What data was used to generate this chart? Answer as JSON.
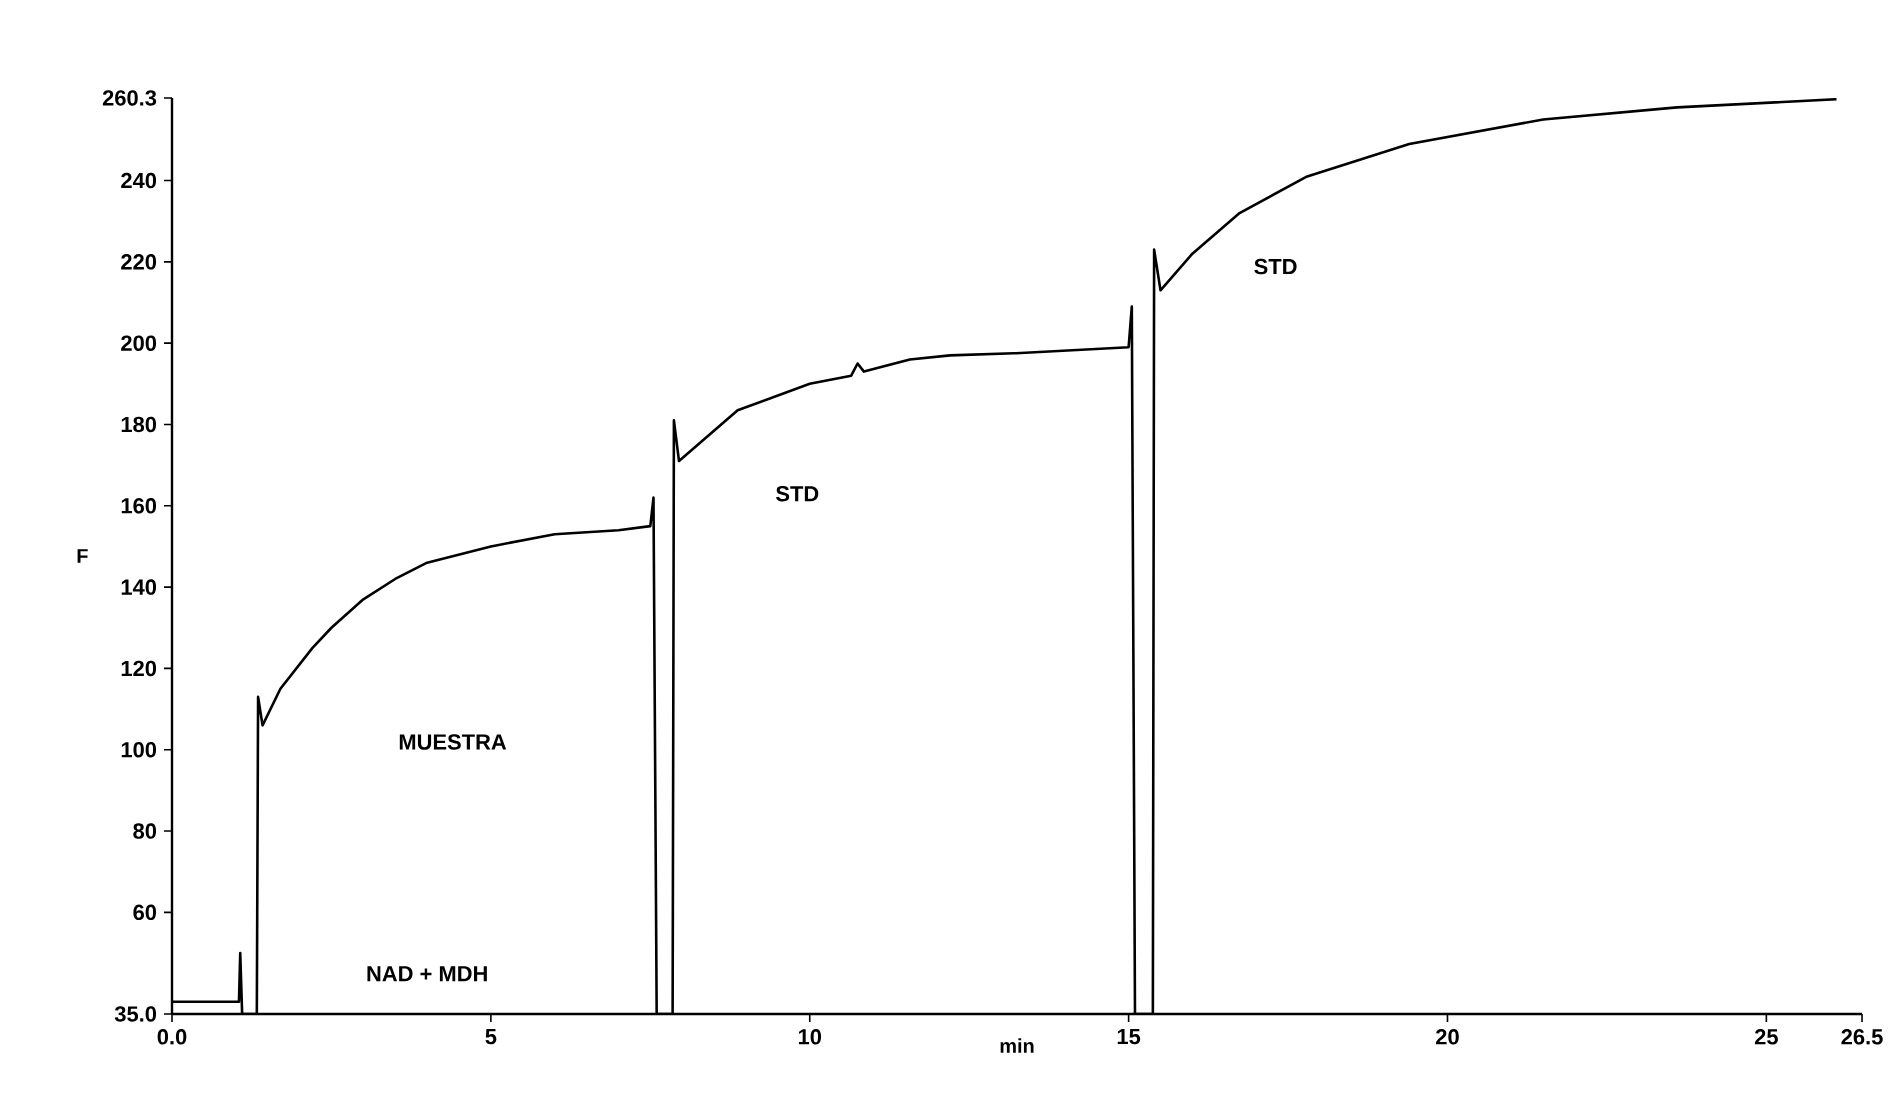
{
  "chart_data": {
    "type": "line",
    "xlabel": "min",
    "ylabel": "F",
    "x": [
      0,
      1.05,
      1.07,
      1.1,
      1.33,
      1.35,
      1.42,
      1.7,
      2.2,
      2.5,
      3.0,
      3.5,
      4.0,
      5.0,
      6.0,
      7.0,
      7.5,
      7.55,
      7.6,
      7.85,
      7.87,
      7.95,
      8.87,
      10.0,
      10.65,
      10.75,
      10.85,
      11.57,
      12.2,
      13.2,
      15.0,
      15.05,
      15.1,
      15.38,
      15.4,
      15.5,
      16.0,
      16.74,
      17.8,
      19.4,
      21.5,
      23.6,
      26.1
    ],
    "series": [
      {
        "color": "#000000",
        "values": [
          38,
          38,
          50,
          35,
          35,
          113,
          106,
          115,
          125,
          130,
          137,
          142,
          146,
          150,
          153,
          154,
          155,
          162,
          35,
          35,
          181,
          171,
          183.5,
          190,
          192,
          195,
          193,
          196,
          197,
          197.5,
          199,
          209,
          35,
          35,
          223,
          213,
          222,
          232,
          241,
          249,
          255,
          258,
          260
        ]
      }
    ],
    "xlim": [
      0,
      26.5
    ],
    "ylim": [
      35.0,
      260.3
    ],
    "xticks": [
      {
        "value": 0,
        "label": "0.0"
      },
      5,
      10,
      15,
      20,
      25,
      26.5
    ],
    "yticks": [
      {
        "value": 35.0,
        "label": "35.0"
      },
      60,
      80,
      100,
      120,
      140,
      160,
      180,
      200,
      220,
      240,
      {
        "value": 260.3,
        "label": "260.3"
      }
    ],
    "marker": "none",
    "line_style": "solid",
    "annotations": [
      "NAD + MDH",
      "MUESTRA",
      "STD",
      "STD"
    ]
  }
}
